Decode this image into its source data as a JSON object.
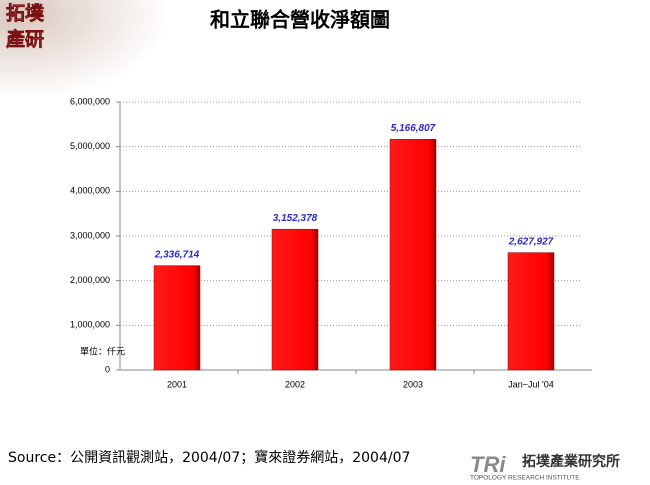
{
  "logo": {
    "lines": [
      "拓墣",
      "產研"
    ]
  },
  "chart_data": {
    "type": "bar",
    "title": "和立聯合營收淨額圖",
    "categories": [
      "2001",
      "2002",
      "2003",
      "Jan~Jul '04"
    ],
    "values": [
      2336714,
      3152378,
      5166807,
      2627927
    ],
    "value_labels": [
      "2,336,714",
      "3,152,378",
      "5,166,807",
      "2,627,927"
    ],
    "color": "#ff0000",
    "value_label_color": "#2a2acc",
    "ylim": [
      0,
      6000000
    ],
    "yticks": [
      0,
      {
        "value": 1000000,
        "label": "1,000,000"
      },
      {
        "value": 2000000,
        "label": "2,000,000"
      },
      {
        "value": 3000000,
        "label": "3,000,000"
      },
      {
        "value": 4000000,
        "label": "4,000,000"
      },
      {
        "value": 5000000,
        "label": "5,000,000"
      },
      {
        "value": 6000000,
        "label": "6,000,000"
      }
    ],
    "grid": true,
    "unit_label": "單位：仟元"
  },
  "source": "Source：公開資訊觀測站，2004/07；寶來證券網站，2004/07",
  "footer_logo": {
    "mark": "TRi",
    "name": "拓墣產業研究所",
    "english": "TOPOLOGY RESEARCH INSTITUTE"
  }
}
